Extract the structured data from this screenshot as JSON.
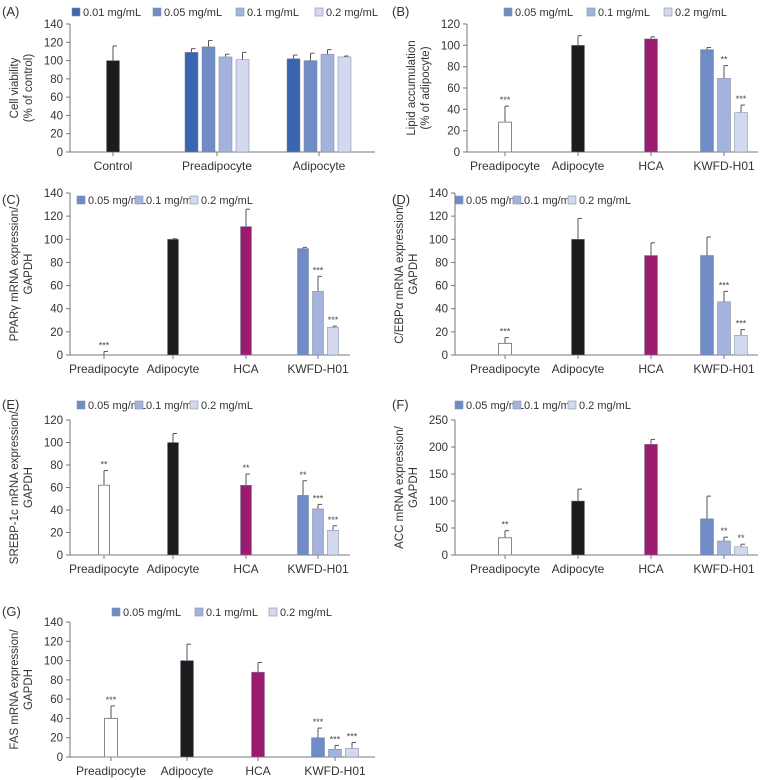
{
  "colors": {
    "control": "#1c1c1c",
    "preadipocyte": "#ffffff",
    "adipocyte": "#1c1c1c",
    "hca": "#9b1b6e",
    "0.01 mg/mL": "#3a65b0",
    "0.05 mg/mL": "#6f8cc6",
    "0.1 mg/mL": "#a4b3dd",
    "0.2 mg/mL": "#d2d8ee"
  },
  "chart_data": [
    {
      "panel": "(A)",
      "type": "bar",
      "ylabel": [
        "Cell viability",
        "(% of control)"
      ],
      "ylim": [
        0,
        140
      ],
      "yticks": [
        "0",
        "20",
        "40",
        "60",
        "80",
        "100",
        "120",
        "140"
      ],
      "legend": [
        "0.01 mg/mL",
        "0.05 mg/mL",
        "0.1 mg/mL",
        "0.2 mg/mL"
      ],
      "groups": [
        {
          "category": "Control",
          "bars": [
            {
              "series": "control",
              "value": 100,
              "error": 16,
              "sig": ""
            }
          ]
        },
        {
          "category": "Preadipocyte",
          "bars": [
            {
              "series": "0.01 mg/mL",
              "value": 109,
              "error": 4,
              "sig": ""
            },
            {
              "series": "0.05 mg/mL",
              "value": 115,
              "error": 7,
              "sig": ""
            },
            {
              "series": "0.1 mg/mL",
              "value": 104,
              "error": 3,
              "sig": ""
            },
            {
              "series": "0.2 mg/mL",
              "value": 101,
              "error": 8,
              "sig": ""
            }
          ]
        },
        {
          "category": "Adipocyte",
          "bars": [
            {
              "series": "0.01 mg/mL",
              "value": 102,
              "error": 4,
              "sig": ""
            },
            {
              "series": "0.05 mg/mL",
              "value": 100,
              "error": 8,
              "sig": ""
            },
            {
              "series": "0.1 mg/mL",
              "value": 107,
              "error": 5,
              "sig": ""
            },
            {
              "series": "0.2 mg/mL",
              "value": 104,
              "error": 1,
              "sig": ""
            }
          ]
        }
      ]
    },
    {
      "panel": "(B)",
      "type": "bar",
      "ylabel": [
        "Lipid accumulation",
        "(% of adipocyte)"
      ],
      "ylim": [
        0,
        120
      ],
      "yticks": [
        "0",
        "20",
        "40",
        "60",
        "80",
        "100",
        "120"
      ],
      "legend": [
        "0.05 mg/mL",
        "0.1 mg/mL",
        "0.2 mg/mL"
      ],
      "groups": [
        {
          "category": "Preadipocyte",
          "bars": [
            {
              "series": "preadipocyte",
              "value": 28,
              "error": 15,
              "sig": "***"
            }
          ]
        },
        {
          "category": "Adipocyte",
          "bars": [
            {
              "series": "adipocyte",
              "value": 100,
              "error": 9,
              "sig": ""
            }
          ]
        },
        {
          "category": "HCA",
          "bars": [
            {
              "series": "hca",
              "value": 106,
              "error": 2,
              "sig": ""
            }
          ]
        },
        {
          "category": "KWFD-H01",
          "bars": [
            {
              "series": "0.05 mg/mL",
              "value": 96,
              "error": 2,
              "sig": ""
            },
            {
              "series": "0.1 mg/mL",
              "value": 69,
              "error": 12,
              "sig": "**"
            },
            {
              "series": "0.2 mg/mL",
              "value": 37,
              "error": 7,
              "sig": "***"
            }
          ]
        }
      ]
    },
    {
      "panel": "(C)",
      "type": "bar",
      "ylabel": [
        "PPARγ mRNA expression/",
        "GAPDH"
      ],
      "ylim": [
        0,
        140
      ],
      "yticks": [
        "0",
        "20",
        "40",
        "60",
        "80",
        "100",
        "120",
        "140"
      ],
      "legend": [
        "0.05 mg/mL",
        "0.1 mg/mL",
        "0.2 mg/mL"
      ],
      "groups": [
        {
          "category": "Preadipocyte",
          "bars": [
            {
              "series": "preadipocyte",
              "value": 0,
              "error": 3,
              "sig": "***"
            }
          ]
        },
        {
          "category": "Adipocyte",
          "bars": [
            {
              "series": "adipocyte",
              "value": 100,
              "error": 0.5,
              "sig": ""
            }
          ]
        },
        {
          "category": "HCA",
          "bars": [
            {
              "series": "hca",
              "value": 111,
              "error": 15,
              "sig": ""
            }
          ]
        },
        {
          "category": "KWFD-H01",
          "bars": [
            {
              "series": "0.05 mg/mL",
              "value": 92,
              "error": 1,
              "sig": ""
            },
            {
              "series": "0.1 mg/mL",
              "value": 55,
              "error": 13,
              "sig": "***"
            },
            {
              "series": "0.2 mg/mL",
              "value": 24,
              "error": 1,
              "sig": "***"
            }
          ]
        }
      ]
    },
    {
      "panel": "(D)",
      "type": "bar",
      "ylabel": [
        "C/EBPα mRNA expression/",
        "GAPDH"
      ],
      "ylim": [
        0,
        140
      ],
      "yticks": [
        "0",
        "20",
        "40",
        "60",
        "80",
        "100",
        "120",
        "140"
      ],
      "legend": [
        "0.05 mg/mL",
        "0.1 mg/mL",
        "0.2 mg/mL"
      ],
      "groups": [
        {
          "category": "Preadipocyte",
          "bars": [
            {
              "series": "preadipocyte",
              "value": 10,
              "error": 5,
              "sig": "***"
            }
          ]
        },
        {
          "category": "Adipocyte",
          "bars": [
            {
              "series": "adipocyte",
              "value": 100,
              "error": 18,
              "sig": ""
            }
          ]
        },
        {
          "category": "HCA",
          "bars": [
            {
              "series": "hca",
              "value": 86,
              "error": 11,
              "sig": ""
            }
          ]
        },
        {
          "category": "KWFD-H01",
          "bars": [
            {
              "series": "0.05 mg/mL",
              "value": 86,
              "error": 16,
              "sig": ""
            },
            {
              "series": "0.1 mg/mL",
              "value": 46,
              "error": 9,
              "sig": "***"
            },
            {
              "series": "0.2 mg/mL",
              "value": 17,
              "error": 5,
              "sig": "***"
            }
          ]
        }
      ]
    },
    {
      "panel": "(E)",
      "type": "bar",
      "ylabel": [
        "SREBP-1c mRNA expression/",
        "GAPDH"
      ],
      "ylim": [
        0,
        120
      ],
      "yticks": [
        "0",
        "20",
        "40",
        "60",
        "80",
        "100",
        "120"
      ],
      "legend": [
        "0.05 mg/mL",
        "0.1 mg/mL",
        "0.2 mg/mL"
      ],
      "groups": [
        {
          "category": "Preadipocyte",
          "bars": [
            {
              "series": "preadipocyte",
              "value": 62,
              "error": 13,
              "sig": "**"
            }
          ]
        },
        {
          "category": "Adipocyte",
          "bars": [
            {
              "series": "adipocyte",
              "value": 100,
              "error": 8,
              "sig": ""
            }
          ]
        },
        {
          "category": "HCA",
          "bars": [
            {
              "series": "hca",
              "value": 62,
              "error": 10,
              "sig": "**"
            }
          ]
        },
        {
          "category": "KWFD-H01",
          "bars": [
            {
              "series": "0.05 mg/mL",
              "value": 53,
              "error": 13,
              "sig": "**"
            },
            {
              "series": "0.1 mg/mL",
              "value": 41,
              "error": 4,
              "sig": "***"
            },
            {
              "series": "0.2 mg/mL",
              "value": 22,
              "error": 4,
              "sig": "***"
            }
          ]
        }
      ]
    },
    {
      "panel": "(F)",
      "type": "bar",
      "ylabel": [
        "ACC mRNA expression/",
        "GAPDH"
      ],
      "ylim": [
        0,
        250
      ],
      "yticks": [
        "0",
        "50",
        "100",
        "150",
        "200",
        "250"
      ],
      "legend": [
        "0.05 mg/mL",
        "0.1 mg/mL",
        "0.2 mg/mL"
      ],
      "groups": [
        {
          "category": "Preadipocyte",
          "bars": [
            {
              "series": "preadipocyte",
              "value": 32,
              "error": 13,
              "sig": "**"
            }
          ]
        },
        {
          "category": "Adipocyte",
          "bars": [
            {
              "series": "adipocyte",
              "value": 100,
              "error": 22,
              "sig": ""
            }
          ]
        },
        {
          "category": "HCA",
          "bars": [
            {
              "series": "hca",
              "value": 205,
              "error": 9,
              "sig": ""
            }
          ]
        },
        {
          "category": "KWFD-H01",
          "bars": [
            {
              "series": "0.05 mg/mL",
              "value": 67,
              "error": 42,
              "sig": ""
            },
            {
              "series": "0.1 mg/mL",
              "value": 26,
              "error": 7,
              "sig": "**"
            },
            {
              "series": "0.2 mg/mL",
              "value": 15,
              "error": 5,
              "sig": "**"
            }
          ]
        }
      ]
    },
    {
      "panel": "(G)",
      "type": "bar",
      "ylabel": [
        "FAS mRNA expression/",
        "GAPDH"
      ],
      "ylim": [
        0,
        140
      ],
      "yticks": [
        "0",
        "20",
        "40",
        "60",
        "80",
        "100",
        "120",
        "140"
      ],
      "legend": [
        "0.05 mg/mL",
        "0.1 mg/mL",
        "0.2 mg/mL"
      ],
      "groups": [
        {
          "category": "Preadipocyte",
          "bars": [
            {
              "series": "preadipocyte",
              "value": 40,
              "error": 13,
              "sig": "***"
            }
          ]
        },
        {
          "category": "Adipocyte",
          "bars": [
            {
              "series": "adipocyte",
              "value": 100,
              "error": 17,
              "sig": ""
            }
          ]
        },
        {
          "category": "HCA",
          "bars": [
            {
              "series": "hca",
              "value": 88,
              "error": 10,
              "sig": ""
            }
          ]
        },
        {
          "category": "KWFD-H01",
          "bars": [
            {
              "series": "0.05 mg/mL",
              "value": 20,
              "error": 10,
              "sig": "***"
            },
            {
              "series": "0.1 mg/mL",
              "value": 8,
              "error": 4,
              "sig": "***"
            },
            {
              "series": "0.2 mg/mL",
              "value": 9,
              "error": 6,
              "sig": "***"
            }
          ]
        }
      ]
    }
  ]
}
